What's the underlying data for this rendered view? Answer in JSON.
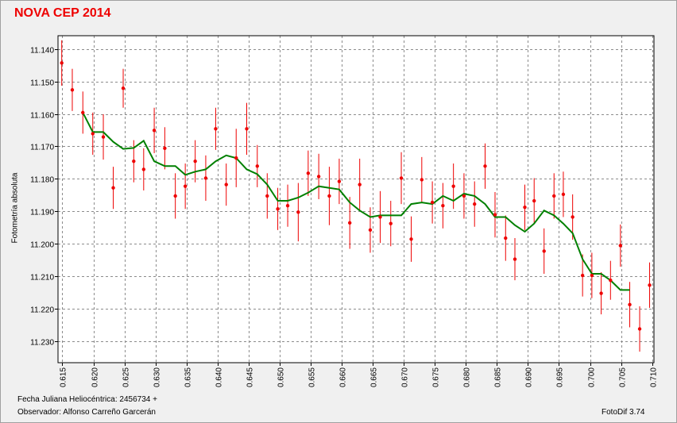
{
  "colors": {
    "title": "#ee0000",
    "background": "#f0f0f0",
    "plot_background": "#ffffff",
    "grid": "#8c8c8c",
    "points": "#ee0000",
    "smooth_line": "#008000"
  },
  "footer": {
    "jd_label": "Fecha Juliana Heliocéntrica: 2456734 +",
    "observer": "Observador: Alfonso Carreño Garcerán",
    "software": "FotoDif 3.74"
  },
  "chart_data": {
    "type": "scatter",
    "title": "NOVA CEP 2014",
    "xlabel": "",
    "ylabel": "Fotometría absoluta",
    "xlim": [
      0.6143,
      0.7103
    ],
    "ylim": [
      11.1359,
      11.2367
    ],
    "y_inverted": true,
    "grid": true,
    "x_ticks": [
      "0.615",
      "0.620",
      "0.625",
      "0.630",
      "0.635",
      "0.640",
      "0.645",
      "0.650",
      "0.655",
      "0.660",
      "0.665",
      "0.670",
      "0.675",
      "0.680",
      "0.685",
      "0.690",
      "0.695",
      "0.700",
      "0.705",
      "0.710"
    ],
    "y_ticks": [
      "11.140",
      "11.150",
      "11.160",
      "11.170",
      "11.180",
      "11.190",
      "11.200",
      "11.210",
      "11.220",
      "11.230"
    ],
    "points": [
      {
        "x": 0.6149,
        "y": 11.1443,
        "err": 0.007
      },
      {
        "x": 0.6166,
        "y": 11.1526,
        "err": 0.0065
      },
      {
        "x": 0.6183,
        "y": 11.1596,
        "err": 0.0065
      },
      {
        "x": 0.6199,
        "y": 11.1661,
        "err": 0.0065
      },
      {
        "x": 0.6216,
        "y": 11.1671,
        "err": 0.007
      },
      {
        "x": 0.6232,
        "y": 11.1828,
        "err": 0.0065
      },
      {
        "x": 0.6248,
        "y": 11.1521,
        "err": 0.006
      },
      {
        "x": 0.6265,
        "y": 11.1746,
        "err": 0.0065
      },
      {
        "x": 0.6281,
        "y": 11.1771,
        "err": 0.0065
      },
      {
        "x": 0.6298,
        "y": 11.1651,
        "err": 0.007
      },
      {
        "x": 0.6315,
        "y": 11.1706,
        "err": 0.0065
      },
      {
        "x": 0.6332,
        "y": 11.1853,
        "err": 0.007
      },
      {
        "x": 0.6348,
        "y": 11.1823,
        "err": 0.007
      },
      {
        "x": 0.6364,
        "y": 11.1746,
        "err": 0.0065
      },
      {
        "x": 0.6381,
        "y": 11.1798,
        "err": 0.007
      },
      {
        "x": 0.6397,
        "y": 11.1646,
        "err": 0.0065
      },
      {
        "x": 0.6414,
        "y": 11.1818,
        "err": 0.0065
      },
      {
        "x": 0.643,
        "y": 11.1736,
        "err": 0.009
      },
      {
        "x": 0.6447,
        "y": 11.1646,
        "err": 0.008
      },
      {
        "x": 0.6464,
        "y": 11.1761,
        "err": 0.0065
      },
      {
        "x": 0.648,
        "y": 11.1853,
        "err": 0.007
      },
      {
        "x": 0.6497,
        "y": 11.1893,
        "err": 0.0065
      },
      {
        "x": 0.6513,
        "y": 11.1883,
        "err": 0.0065
      },
      {
        "x": 0.653,
        "y": 11.1903,
        "err": 0.009
      },
      {
        "x": 0.6546,
        "y": 11.1783,
        "err": 0.007
      },
      {
        "x": 0.6563,
        "y": 11.1793,
        "err": 0.007
      },
      {
        "x": 0.658,
        "y": 11.1853,
        "err": 0.009
      },
      {
        "x": 0.6596,
        "y": 11.1808,
        "err": 0.007
      },
      {
        "x": 0.6613,
        "y": 11.1936,
        "err": 0.008
      },
      {
        "x": 0.6629,
        "y": 11.1818,
        "err": 0.008
      },
      {
        "x": 0.6646,
        "y": 11.1958,
        "err": 0.007
      },
      {
        "x": 0.6662,
        "y": 11.1918,
        "err": 0.008
      },
      {
        "x": 0.6679,
        "y": 11.1938,
        "err": 0.007
      },
      {
        "x": 0.6696,
        "y": 11.1798,
        "err": 0.008
      },
      {
        "x": 0.6712,
        "y": 11.1986,
        "err": 0.007
      },
      {
        "x": 0.6729,
        "y": 11.1803,
        "err": 0.007
      },
      {
        "x": 0.6746,
        "y": 11.1873,
        "err": 0.0065
      },
      {
        "x": 0.6763,
        "y": 11.1883,
        "err": 0.007
      },
      {
        "x": 0.678,
        "y": 11.1823,
        "err": 0.007
      },
      {
        "x": 0.6797,
        "y": 11.1853,
        "err": 0.007
      },
      {
        "x": 0.6814,
        "y": 11.1878,
        "err": 0.007
      },
      {
        "x": 0.6831,
        "y": 11.1761,
        "err": 0.007
      },
      {
        "x": 0.6847,
        "y": 11.1911,
        "err": 0.007
      },
      {
        "x": 0.6864,
        "y": 11.1983,
        "err": 0.007
      },
      {
        "x": 0.6879,
        "y": 11.2048,
        "err": 0.0065
      },
      {
        "x": 0.6895,
        "y": 11.1888,
        "err": 0.007
      },
      {
        "x": 0.691,
        "y": 11.1868,
        "err": 0.007
      },
      {
        "x": 0.6926,
        "y": 11.2023,
        "err": 0.007
      },
      {
        "x": 0.6942,
        "y": 11.1853,
        "err": 0.007
      },
      {
        "x": 0.6957,
        "y": 11.1848,
        "err": 0.007
      },
      {
        "x": 0.6972,
        "y": 11.1918,
        "err": 0.007
      },
      {
        "x": 0.6988,
        "y": 11.2098,
        "err": 0.0065
      },
      {
        "x": 0.7003,
        "y": 11.2098,
        "err": 0.007
      },
      {
        "x": 0.7018,
        "y": 11.2153,
        "err": 0.0065
      },
      {
        "x": 0.7033,
        "y": 11.2113,
        "err": 0.006
      },
      {
        "x": 0.7049,
        "y": 11.2006,
        "err": 0.0065
      },
      {
        "x": 0.7064,
        "y": 11.2188,
        "err": 0.007
      },
      {
        "x": 0.708,
        "y": 11.2263,
        "err": 0.007
      },
      {
        "x": 0.7096,
        "y": 11.2128,
        "err": 0.007
      }
    ],
    "series": [
      {
        "x": [
          0.6183,
          0.6199,
          0.6216,
          0.6232,
          0.6248,
          0.6265,
          0.6281,
          0.6298,
          0.6315,
          0.6332,
          0.6348,
          0.6364,
          0.6381,
          0.6397,
          0.6414,
          0.643,
          0.6447,
          0.6464,
          0.648,
          0.6497,
          0.6513,
          0.653,
          0.6546,
          0.6563,
          0.658,
          0.6596,
          0.6613,
          0.6629,
          0.6646,
          0.6662,
          0.6679,
          0.6696,
          0.6712,
          0.6729,
          0.6746,
          0.6763,
          0.678,
          0.6797,
          0.6814,
          0.6831,
          0.6847,
          0.6864,
          0.6879,
          0.6895,
          0.691,
          0.6926,
          0.6942,
          0.6957,
          0.6972,
          0.6988,
          0.7003,
          0.7018,
          0.7033,
          0.7049,
          0.7064
        ],
        "y": [
          11.1596,
          11.1656,
          11.1656,
          11.1686,
          11.1708,
          11.1705,
          11.1683,
          11.1746,
          11.1761,
          11.1761,
          11.1788,
          11.1778,
          11.1771,
          11.1746,
          11.1728,
          11.1736,
          11.1771,
          11.1786,
          11.1818,
          11.1868,
          11.1868,
          11.1858,
          11.1843,
          11.1823,
          11.1828,
          11.1833,
          11.1873,
          11.1898,
          11.1918,
          11.1913,
          11.1913,
          11.1913,
          11.1878,
          11.1873,
          11.1878,
          11.1853,
          11.1868,
          11.1846,
          11.1853,
          11.1878,
          11.1918,
          11.1918,
          11.1943,
          11.1963,
          11.1938,
          11.1898,
          11.1913,
          11.1938,
          11.1968,
          11.2048,
          11.2093,
          11.2093,
          11.2113,
          11.2143,
          11.2143
        ]
      }
    ]
  }
}
